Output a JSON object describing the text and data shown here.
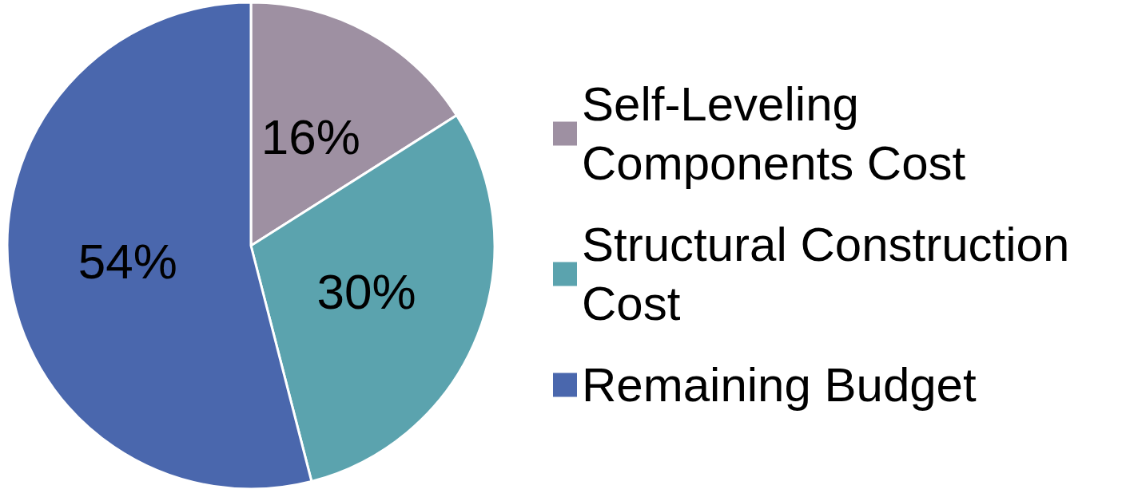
{
  "chart_data": {
    "type": "pie",
    "categories": [
      "Self-Leveling Components Cost",
      "Structural Construction Cost",
      "Remaining Budget"
    ],
    "values": [
      16,
      30,
      54
    ],
    "colors": [
      "#9e90a2",
      "#5ba3ae",
      "#4a67ad"
    ],
    "value_labels": [
      "16%",
      "30%",
      "54%"
    ],
    "legend": "right"
  }
}
